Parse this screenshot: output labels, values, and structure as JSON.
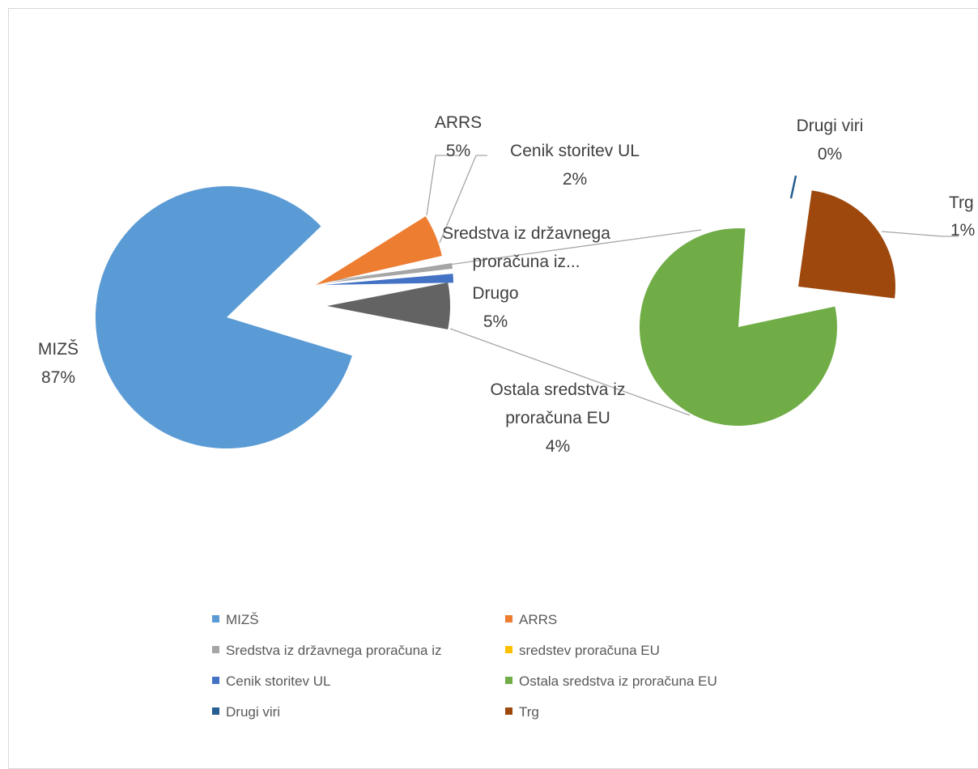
{
  "chart_data": {
    "type": "pie",
    "subtype": "pie-of-pie",
    "title": "",
    "main_pie": {
      "slices": [
        {
          "name": "MIZŠ",
          "label": "87%",
          "value": 87,
          "color": "#5b9bd5"
        },
        {
          "name": "ARRS",
          "label": "5%",
          "value": 5,
          "color": "#ed7d31"
        },
        {
          "name": "Sredstva iz državnega proračuna iz...",
          "label": "",
          "value": 0.5,
          "color": "#a5a5a5"
        },
        {
          "name": "Cenik storitev UL",
          "label": "2%",
          "value": 2,
          "color": "#4472c4"
        },
        {
          "name": "Drugo",
          "label": "5%",
          "value": 5,
          "color": "#636363"
        }
      ]
    },
    "secondary_pie": {
      "slices": [
        {
          "name": "Ostala sredstva iz proračuna EU",
          "label": "4%",
          "value": 4,
          "color": "#70ad47"
        },
        {
          "name": "Drugi viri",
          "label": "0%",
          "value": 0.05,
          "color": "#255e91"
        },
        {
          "name": "Trg",
          "label": "1%",
          "value": 1,
          "color": "#9e480e"
        }
      ]
    },
    "data_labels": {
      "mizs_name": "MIZŠ",
      "mizs_pct": "87%",
      "arrs_name": "ARRS",
      "arrs_pct": "5%",
      "cenik_name": "Cenik storitev UL",
      "cenik_pct": "2%",
      "sredstva_line1": "Sredstva iz državnega",
      "sredstva_line2": "proračuna iz...",
      "drugo_name": "Drugo",
      "drugo_pct": "5%",
      "ostala_line1": "Ostala sredstva iz",
      "ostala_line2": "proračuna EU",
      "ostala_pct": "4%",
      "drugi_viri_name": "Drugi viri",
      "drugi_viri_pct": "0%",
      "trg_name": "Trg",
      "trg_pct": "1%"
    },
    "legend": {
      "placement": "bottom",
      "items": [
        {
          "label": "MIZŠ",
          "color": "#5b9bd5"
        },
        {
          "label": "ARRS",
          "color": "#ed7d31"
        },
        {
          "label": "Sredstva iz državnega proračuna iz",
          "color": "#a5a5a5"
        },
        {
          "label": "sredstev proračuna EU",
          "color": "#ffc000"
        },
        {
          "label": "Cenik storitev UL",
          "color": "#4472c4"
        },
        {
          "label": "Ostala sredstva iz proračuna EU",
          "color": "#70ad47"
        },
        {
          "label": "Drugi viri",
          "color": "#255e91"
        },
        {
          "label": "Trg",
          "color": "#9e480e"
        }
      ]
    }
  }
}
